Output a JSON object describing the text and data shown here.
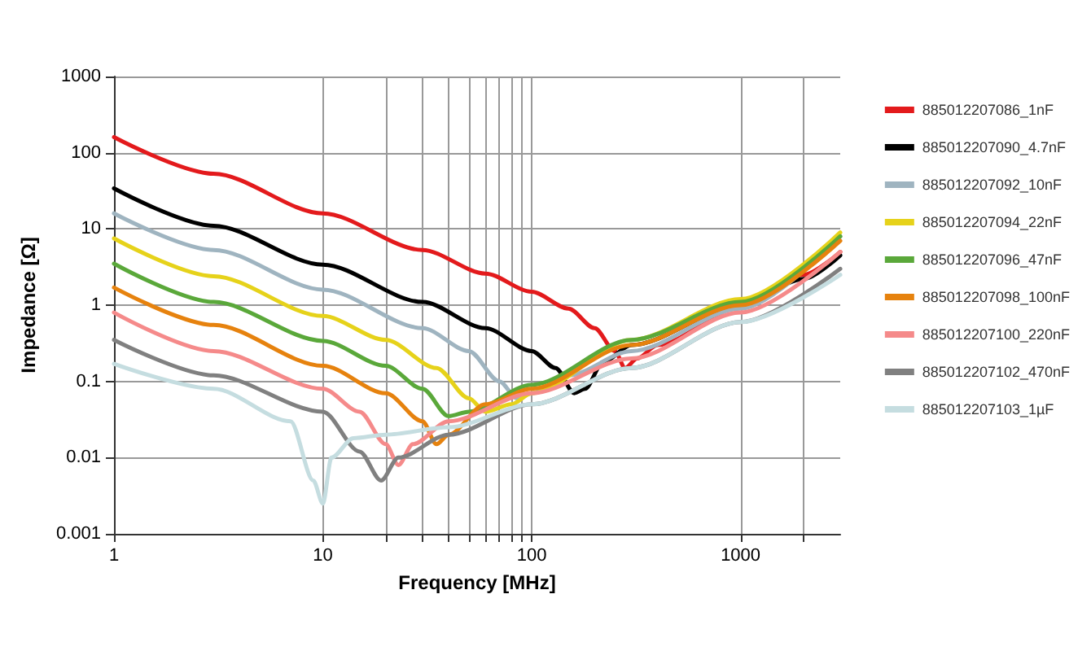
{
  "chart_data": {
    "type": "line",
    "xlabel": "Frequency [MHz]",
    "ylabel": "Impedance [Ω]",
    "log": "xy",
    "grid": true,
    "legend": "right",
    "marker": "none",
    "line_style": "solid",
    "xlim": [
      1,
      3000
    ],
    "ylim": [
      0.001,
      1000
    ],
    "xticks": [
      1,
      10,
      {
        "value": 20,
        "label": null
      },
      {
        "value": 30,
        "label": null
      },
      {
        "value": 40,
        "label": null
      },
      {
        "value": 50,
        "label": null
      },
      {
        "value": 60,
        "label": null
      },
      {
        "value": 70,
        "label": null
      },
      {
        "value": 80,
        "label": null
      },
      {
        "value": 90,
        "label": null
      },
      100,
      1000,
      {
        "value": 2000,
        "label": null
      }
    ],
    "yticks": [
      0.001,
      0.01,
      0.1,
      1,
      10,
      100,
      1000
    ],
    "series": [
      {
        "name": "885012207086_1nF",
        "color": "#e31a1c",
        "x": [
          1,
          3,
          10,
          30,
          60,
          100,
          150,
          200,
          250,
          280,
          320,
          400,
          1000,
          2000,
          3000
        ],
        "values": [
          160,
          53,
          16,
          5.3,
          2.6,
          1.5,
          0.9,
          0.5,
          0.25,
          0.15,
          0.2,
          0.3,
          0.95,
          2.5,
          5
        ]
      },
      {
        "name": "885012207090_4.7nF",
        "color": "#000000",
        "x": [
          1,
          3,
          10,
          30,
          60,
          100,
          130,
          160,
          180,
          220,
          300,
          1000,
          2000,
          3000
        ],
        "values": [
          34,
          11,
          3.4,
          1.1,
          0.5,
          0.25,
          0.15,
          0.07,
          0.08,
          0.18,
          0.3,
          1,
          2.2,
          4.5
        ]
      },
      {
        "name": "885012207092_10nF",
        "color": "#9fb4c0",
        "x": [
          1,
          3,
          10,
          30,
          50,
          70,
          85,
          100,
          150,
          300,
          1000,
          3000
        ],
        "values": [
          16,
          5.3,
          1.6,
          0.5,
          0.25,
          0.1,
          0.06,
          0.07,
          0.12,
          0.25,
          0.9,
          8
        ]
      },
      {
        "name": "885012207094_22nF",
        "color": "#e6d21a",
        "x": [
          1,
          3,
          10,
          20,
          35,
          50,
          60,
          80,
          100,
          300,
          1000,
          3000
        ],
        "values": [
          7.5,
          2.4,
          0.72,
          0.35,
          0.15,
          0.06,
          0.04,
          0.05,
          0.07,
          0.35,
          1.2,
          9
        ]
      },
      {
        "name": "885012207096_47nF",
        "color": "#5aa83a",
        "x": [
          1,
          3,
          10,
          20,
          30,
          40,
          50,
          100,
          300,
          1000,
          3000
        ],
        "values": [
          3.5,
          1.1,
          0.34,
          0.16,
          0.08,
          0.035,
          0.04,
          0.09,
          0.35,
          1.1,
          8
        ]
      },
      {
        "name": "885012207098_100nF",
        "color": "#e6820e",
        "x": [
          1,
          3,
          10,
          20,
          30,
          35,
          40,
          60,
          100,
          300,
          1000,
          3000
        ],
        "values": [
          1.7,
          0.55,
          0.16,
          0.07,
          0.03,
          0.015,
          0.02,
          0.05,
          0.08,
          0.3,
          1,
          7
        ]
      },
      {
        "name": "885012207100_220nF",
        "color": "#f58a8a",
        "x": [
          1,
          3,
          10,
          15,
          20,
          23,
          27,
          40,
          100,
          300,
          1000,
          3000
        ],
        "values": [
          0.8,
          0.25,
          0.08,
          0.04,
          0.015,
          0.008,
          0.015,
          0.03,
          0.07,
          0.2,
          0.8,
          5
        ]
      },
      {
        "name": "885012207102_470nF",
        "color": "#808080",
        "x": [
          1,
          3,
          10,
          15,
          19,
          23,
          40,
          100,
          300,
          1000,
          3000
        ],
        "values": [
          0.35,
          0.12,
          0.04,
          0.012,
          0.005,
          0.01,
          0.02,
          0.05,
          0.15,
          0.6,
          3
        ]
      },
      {
        "name": "885012207103_1µF",
        "color": "#c5dde0",
        "x": [
          1,
          3,
          7,
          9,
          10,
          11,
          14,
          20,
          40,
          100,
          300,
          1000,
          3000
        ],
        "values": [
          0.17,
          0.08,
          0.03,
          0.005,
          0.0025,
          0.01,
          0.018,
          0.02,
          0.025,
          0.05,
          0.15,
          0.6,
          2.5
        ]
      }
    ]
  }
}
